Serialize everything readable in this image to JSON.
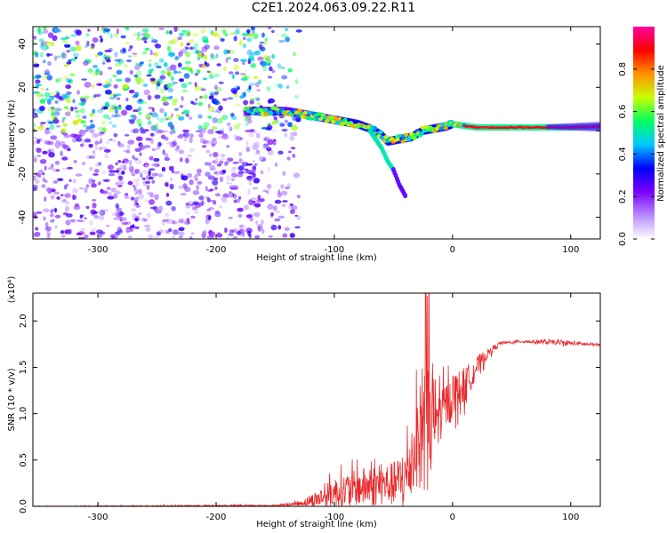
{
  "title": "C2E1.2024.063.09.22.R11",
  "chart_data": [
    {
      "type": "heatmap",
      "xlabel": "Height of straight line (km)",
      "ylabel": "Frequency (Hz)",
      "xlim": [
        -355,
        125
      ],
      "ylim": [
        -50,
        48
      ],
      "x_ticks": [
        -300,
        -200,
        -100,
        0,
        100
      ],
      "y_ticks": [
        -40,
        -20,
        0,
        20,
        40
      ],
      "colorbar": {
        "label": "Normalized spectral amplitude",
        "range": [
          0,
          1
        ],
        "ticks": [
          "0.0",
          "0.2",
          "0.4",
          "0.6",
          "0.8"
        ],
        "colors": [
          "#ffffff",
          "#b78cff",
          "#7a00ff",
          "#0000ff",
          "#00c8ff",
          "#00ff60",
          "#c8ff00",
          "#ff9000",
          "#ff0000",
          "#ff00a0"
        ]
      },
      "ridge": {
        "x": [
          -170,
          -140,
          -120,
          -100,
          -90,
          -80,
          -70,
          -60,
          -55,
          -45,
          -35,
          -25,
          -15,
          -5,
          0,
          20,
          60,
          100,
          125
        ],
        "freq": [
          9,
          9,
          7,
          5,
          4,
          3,
          1,
          -2,
          -5,
          -4,
          -3,
          0,
          1,
          2,
          3,
          1.5,
          1.5,
          1.5,
          2
        ]
      },
      "branch": {
        "x": [
          -70,
          -60,
          -55,
          -50,
          -45,
          -40
        ],
        "freq": [
          0,
          -8,
          -14,
          -18,
          -25,
          -30
        ]
      }
    },
    {
      "type": "line",
      "xlabel": "Height of straight line (km)",
      "ylabel": "SNR (10 * v/v)",
      "y_multiplier": "(x10⁴)",
      "xlim": [
        -355,
        125
      ],
      "ylim": [
        0,
        2.3
      ],
      "x_ticks": [
        -300,
        -200,
        -100,
        0,
        100
      ],
      "y_ticks": [
        "0.0",
        "0.5",
        "1.0",
        "1.5",
        "2.0"
      ],
      "color": "#e8282a",
      "envelope": {
        "x": [
          -355,
          -150,
          -130,
          -120,
          -110,
          -100,
          -90,
          -80,
          -70,
          -60,
          -50,
          -40,
          -35,
          -30,
          -25,
          -20,
          -15,
          -10,
          0,
          10,
          20,
          30,
          40,
          60,
          80,
          100,
          125
        ],
        "y": [
          0.0,
          0.01,
          0.03,
          0.06,
          0.1,
          0.15,
          0.18,
          0.2,
          0.22,
          0.23,
          0.24,
          0.3,
          0.5,
          0.7,
          0.8,
          0.9,
          0.95,
          1.0,
          1.2,
          1.3,
          1.5,
          1.65,
          1.76,
          1.78,
          1.77,
          1.76,
          1.74
        ],
        "spread": [
          0.005,
          0.01,
          0.03,
          0.08,
          0.14,
          0.2,
          0.22,
          0.25,
          0.28,
          0.28,
          0.3,
          0.4,
          0.55,
          0.6,
          0.9,
          1.2,
          0.6,
          0.35,
          0.3,
          0.25,
          0.15,
          0.06,
          0.02,
          0.02,
          0.03,
          0.03,
          0.02
        ]
      }
    }
  ]
}
